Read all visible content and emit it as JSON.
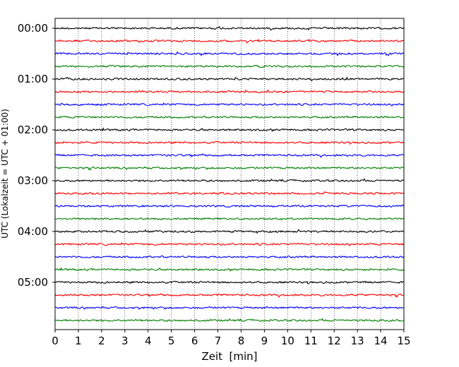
{
  "chart_data": {
    "type": "line",
    "title": "",
    "xlabel": "Zeit  [min]",
    "ylabel": "UTC (Lokalzeit = UTC + 01:00)",
    "xlim": [
      0,
      15
    ],
    "x_ticks": [
      "0",
      "1",
      "2",
      "3",
      "4",
      "5",
      "6",
      "7",
      "8",
      "9",
      "10",
      "11",
      "12",
      "13",
      "14",
      "15"
    ],
    "y_ticks": [
      "00:00",
      "01:00",
      "02:00",
      "03:00",
      "04:00",
      "05:00"
    ],
    "grid": {
      "x": "dotted",
      "y": "off"
    },
    "legend": "none",
    "trace_minutes": 15,
    "trace_count": 24,
    "trace_start_times": [
      "00:00",
      "00:15",
      "00:30",
      "00:45",
      "01:00",
      "01:15",
      "01:30",
      "01:45",
      "02:00",
      "02:15",
      "02:30",
      "02:45",
      "03:00",
      "03:15",
      "03:30",
      "03:45",
      "04:00",
      "04:15",
      "04:30",
      "04:45",
      "05:00",
      "05:15",
      "05:30",
      "05:45"
    ],
    "trace_colors": [
      "#000000",
      "#ff0000",
      "#0000ff",
      "#008000"
    ]
  }
}
